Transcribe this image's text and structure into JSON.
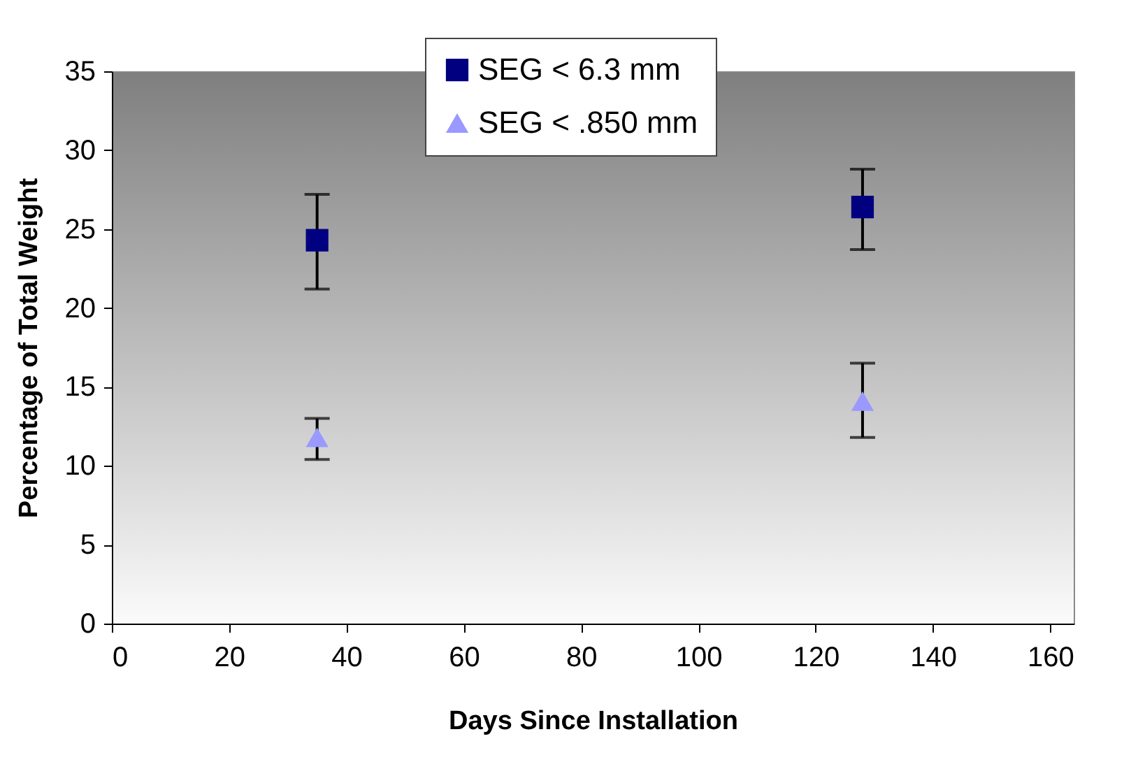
{
  "chart_data": {
    "type": "scatter",
    "xlabel": "Days Since Installation",
    "ylabel": "Percentage of Total Weight",
    "x": [
      35,
      128
    ],
    "series": [
      {
        "name": "SEG < 6.3 mm",
        "color": "#000080",
        "marker": "square",
        "values": [
          24.3,
          26.4
        ],
        "errors": [
          [
            21.2,
            27.2
          ],
          [
            23.7,
            28.8
          ]
        ]
      },
      {
        "name": "SEG < .850 mm",
        "color": "#9999ff",
        "marker": "triangle",
        "values": [
          11.8,
          14.1
        ],
        "errors": [
          [
            10.4,
            13.0
          ],
          [
            11.8,
            16.5
          ]
        ]
      }
    ],
    "xlim": [
      0,
      164
    ],
    "xticks": [
      0,
      20,
      40,
      60,
      80,
      100,
      120,
      140,
      160
    ],
    "ylim": [
      0,
      35
    ],
    "yticks": [
      0,
      5,
      10,
      15,
      20,
      25,
      30,
      35
    ],
    "grid": false,
    "legend": "top"
  }
}
